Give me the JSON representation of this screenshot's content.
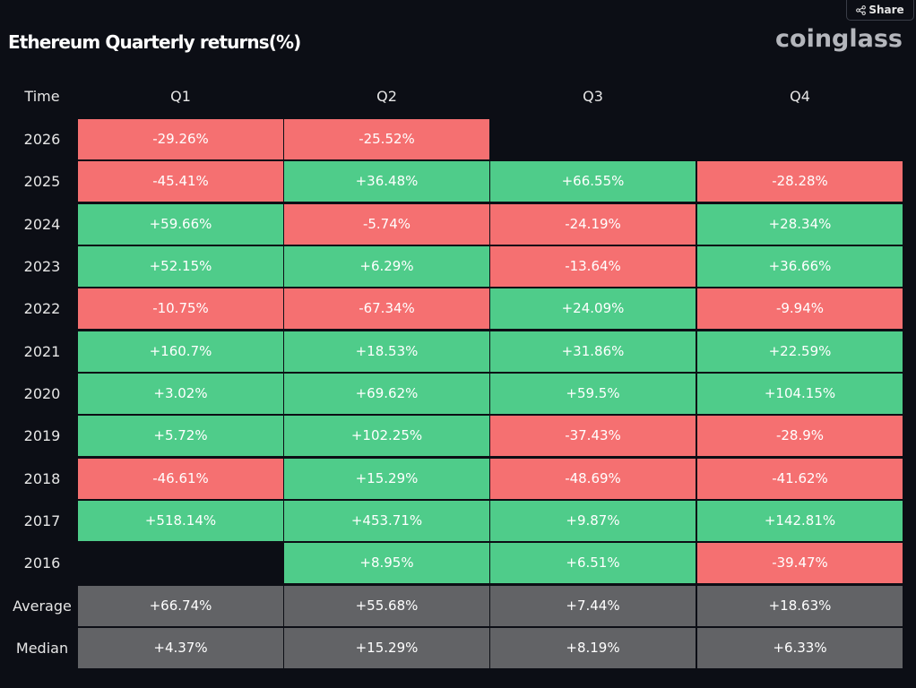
{
  "title": "Ethereum Quarterly returns(%)",
  "logo_text": "coinglass",
  "share_label": "Share",
  "colors": {
    "background": "#0c0e15",
    "positive": "#4fcc8a",
    "negative": "#f57071",
    "stat": "#626366"
  },
  "chart_data": {
    "type": "table",
    "title": "Ethereum Quarterly returns(%)",
    "corner_header": "Time",
    "columns": [
      "Q1",
      "Q2",
      "Q3",
      "Q4"
    ],
    "rows": [
      {
        "label": "2026",
        "kind": "year",
        "values": [
          "-29.26%",
          "-25.52%",
          "",
          ""
        ]
      },
      {
        "label": "2025",
        "kind": "year",
        "values": [
          "-45.41%",
          "+36.48%",
          "+66.55%",
          "-28.28%"
        ]
      },
      {
        "label": "2024",
        "kind": "year",
        "values": [
          "+59.66%",
          "-5.74%",
          "-24.19%",
          "+28.34%"
        ]
      },
      {
        "label": "2023",
        "kind": "year",
        "values": [
          "+52.15%",
          "+6.29%",
          "-13.64%",
          "+36.66%"
        ]
      },
      {
        "label": "2022",
        "kind": "year",
        "values": [
          "-10.75%",
          "-67.34%",
          "+24.09%",
          "-9.94%"
        ]
      },
      {
        "label": "2021",
        "kind": "year",
        "values": [
          "+160.7%",
          "+18.53%",
          "+31.86%",
          "+22.59%"
        ]
      },
      {
        "label": "2020",
        "kind": "year",
        "values": [
          "+3.02%",
          "+69.62%",
          "+59.5%",
          "+104.15%"
        ]
      },
      {
        "label": "2019",
        "kind": "year",
        "values": [
          "+5.72%",
          "+102.25%",
          "-37.43%",
          "-28.9%"
        ]
      },
      {
        "label": "2018",
        "kind": "year",
        "values": [
          "-46.61%",
          "+15.29%",
          "-48.69%",
          "-41.62%"
        ]
      },
      {
        "label": "2017",
        "kind": "year",
        "values": [
          "+518.14%",
          "+453.71%",
          "+9.87%",
          "+142.81%"
        ]
      },
      {
        "label": "2016",
        "kind": "year",
        "values": [
          "",
          "+8.95%",
          "+6.51%",
          "-39.47%"
        ]
      },
      {
        "label": "Average",
        "kind": "stat",
        "values": [
          "+66.74%",
          "+55.68%",
          "+7.44%",
          "+18.63%"
        ]
      },
      {
        "label": "Median",
        "kind": "stat",
        "values": [
          "+4.37%",
          "+15.29%",
          "+8.19%",
          "+6.33%"
        ]
      }
    ]
  }
}
